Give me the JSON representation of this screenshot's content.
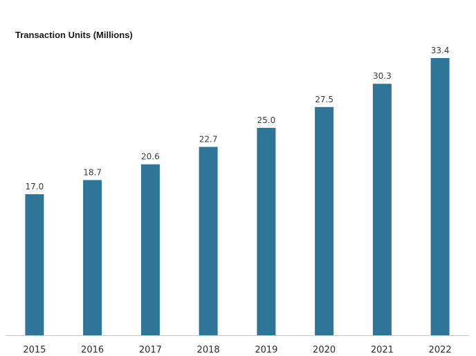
{
  "chart_data": {
    "type": "bar",
    "title": "Transaction Units (Millions)",
    "categories": [
      "2015",
      "2016",
      "2017",
      "2018",
      "2019",
      "2020",
      "2021",
      "2022"
    ],
    "values": [
      17.0,
      18.7,
      20.6,
      22.7,
      25.0,
      27.5,
      30.3,
      33.4
    ],
    "value_labels": [
      "17.0",
      "18.7",
      "20.6",
      "22.7",
      "25.0",
      "27.5",
      "30.3",
      "33.4"
    ],
    "xlabel": "",
    "ylabel": "",
    "ylim": [
      0,
      33.4
    ],
    "grid": false,
    "legend": "none",
    "bar_color": "#2e7597",
    "axis_color": "#c8c8c8"
  }
}
